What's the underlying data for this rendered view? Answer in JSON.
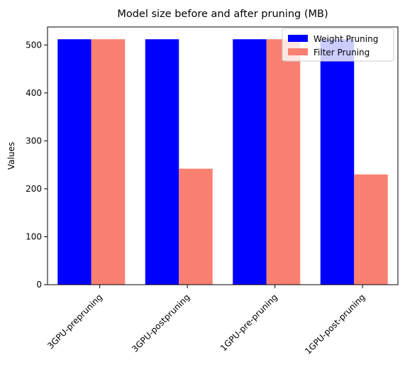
{
  "chart_data": {
    "type": "bar",
    "title": "Model size before and after pruning (MB)",
    "xlabel": "",
    "ylabel": "Values",
    "categories": [
      "3GPU-prepruning",
      "3GPU-postpruning",
      "1GPU-pre-pruning",
      "1GPU-post-pruning"
    ],
    "series": [
      {
        "name": "Weight Pruning",
        "color": "#0000ff",
        "values": [
          512,
          512,
          512,
          512
        ]
      },
      {
        "name": "Filter Pruning",
        "color": "#fa8072",
        "values": [
          512,
          242,
          512,
          230
        ]
      }
    ],
    "ylim": [
      0,
      537.6
    ],
    "yticks": [
      0,
      100,
      200,
      300,
      400,
      500
    ],
    "legend_position": "top-right",
    "grid": false,
    "tick_label_rotation_deg": 45
  }
}
